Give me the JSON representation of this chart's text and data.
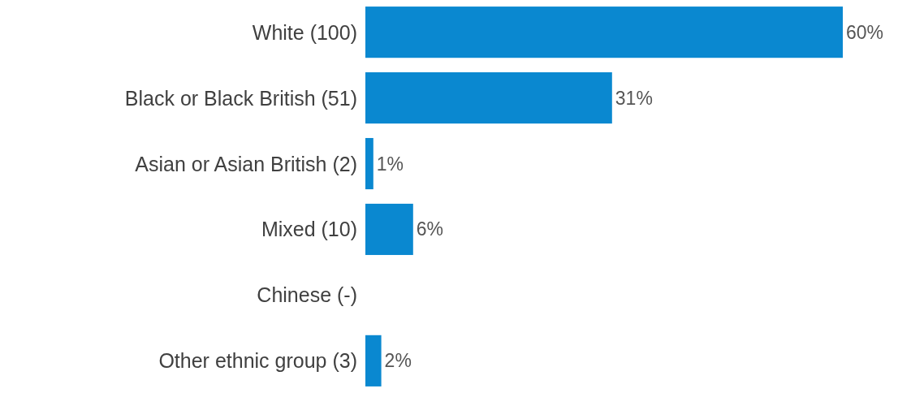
{
  "chart_data": {
    "type": "bar",
    "orientation": "horizontal",
    "categories": [
      "White (100)",
      "Black or Black British (51)",
      "Asian or Asian British (2)",
      "Mixed (10)",
      "Chinese (-)",
      "Other ethnic group (3)"
    ],
    "values": [
      60,
      31,
      1,
      6,
      null,
      2
    ],
    "value_labels": [
      "60%",
      "31%",
      "1%",
      "6%",
      null,
      "2%"
    ],
    "color": "#0a88d0"
  }
}
